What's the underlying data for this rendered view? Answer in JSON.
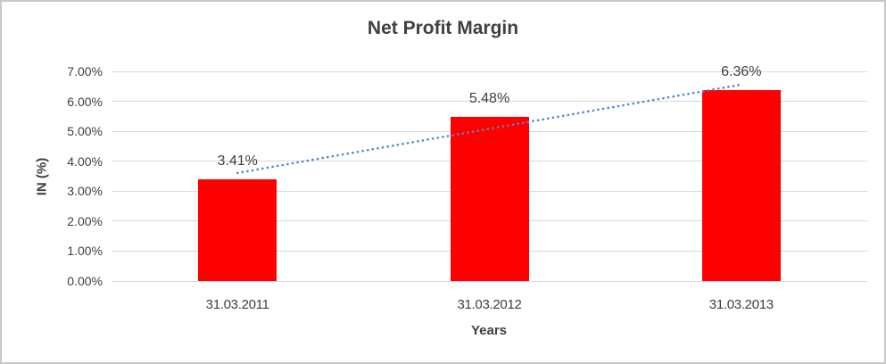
{
  "window": {
    "background_color": "#ffffff",
    "border_color": "#c8c8c8"
  },
  "chart_data": {
    "type": "bar",
    "title": "Net Profit Margin",
    "xlabel": "Years",
    "ylabel": "IN (%)",
    "categories": [
      "31.03.2011",
      "31.03.2012",
      "31.03.2013"
    ],
    "values": [
      3.41,
      5.48,
      6.36
    ],
    "data_labels": [
      "3.41%",
      "5.48%",
      "6.36%"
    ],
    "ylim": [
      0,
      7
    ],
    "ytick_step": 1,
    "ytick_labels": [
      "0.00%",
      "1.00%",
      "2.00%",
      "3.00%",
      "4.00%",
      "5.00%",
      "6.00%",
      "7.00%"
    ],
    "grid": true,
    "legend": false,
    "bar_color": "#ff0000",
    "gridline_color": "#d9d9d9",
    "text_color": "#404040",
    "title_color": "#404040",
    "trendline": {
      "type": "linear",
      "style": "round-dot",
      "color": "#4e86cc",
      "fitted_endpoint_values": [
        3.61,
        6.56
      ]
    }
  }
}
